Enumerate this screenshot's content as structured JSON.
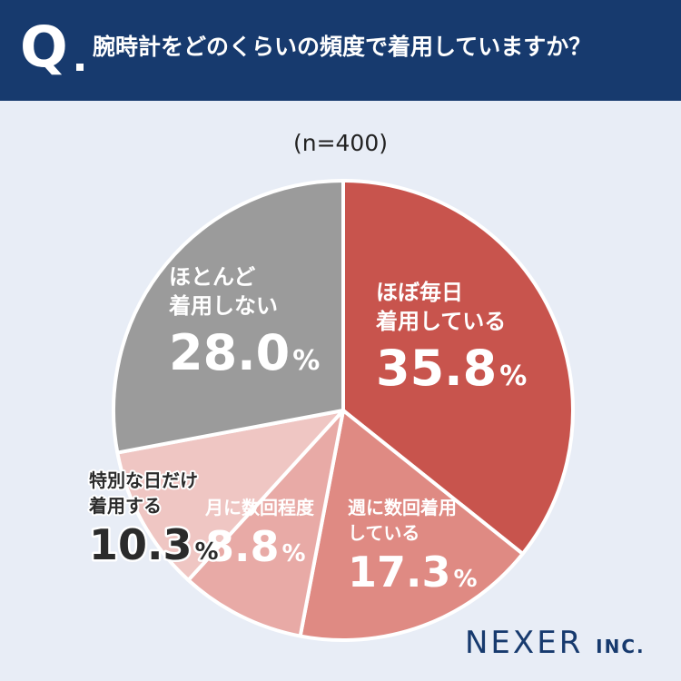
{
  "header": {
    "q_mark": "Q",
    "question": "腕時計をどのくらいの頻度で着用していますか？"
  },
  "sample_label": "(n=400)",
  "brand": {
    "name": "NEXER",
    "suffix": "INC."
  },
  "colors": {
    "header_bg": "#173a6e",
    "background": "#e8edf6",
    "brand": "#173a6e"
  },
  "chart_data": {
    "type": "pie",
    "start": "12 o'clock",
    "direction": "clockwise",
    "slices": [
      {
        "label_lines": [
          "ほぼ毎日",
          "着用している"
        ],
        "value": 35.8,
        "display": "35.8",
        "unit": "%",
        "color": "#c8544d",
        "text_color": "#ffffff",
        "outline": false
      },
      {
        "label_lines": [
          "週に数回着用",
          "している"
        ],
        "value": 17.3,
        "display": "17.3",
        "unit": "%",
        "color": "#df8a83",
        "text_color": "#ffffff",
        "outline": false
      },
      {
        "label_lines": [
          "月に数回程度"
        ],
        "value": 8.8,
        "display": "8.8",
        "unit": "%",
        "color": "#e8aaa6",
        "text_color": "#ffffff",
        "outline": false
      },
      {
        "label_lines": [
          "特別な日だけ",
          "着用する"
        ],
        "value": 10.3,
        "display": "10.3",
        "unit": "%",
        "color": "#efc6c3",
        "text_color": "#2b2b2b",
        "outline": true
      },
      {
        "label_lines": [
          "ほとんど",
          "着用しない"
        ],
        "value": 28.0,
        "display": "28.0",
        "unit": "%",
        "color": "#9b9b9b",
        "text_color": "#ffffff",
        "outline": false
      }
    ]
  }
}
